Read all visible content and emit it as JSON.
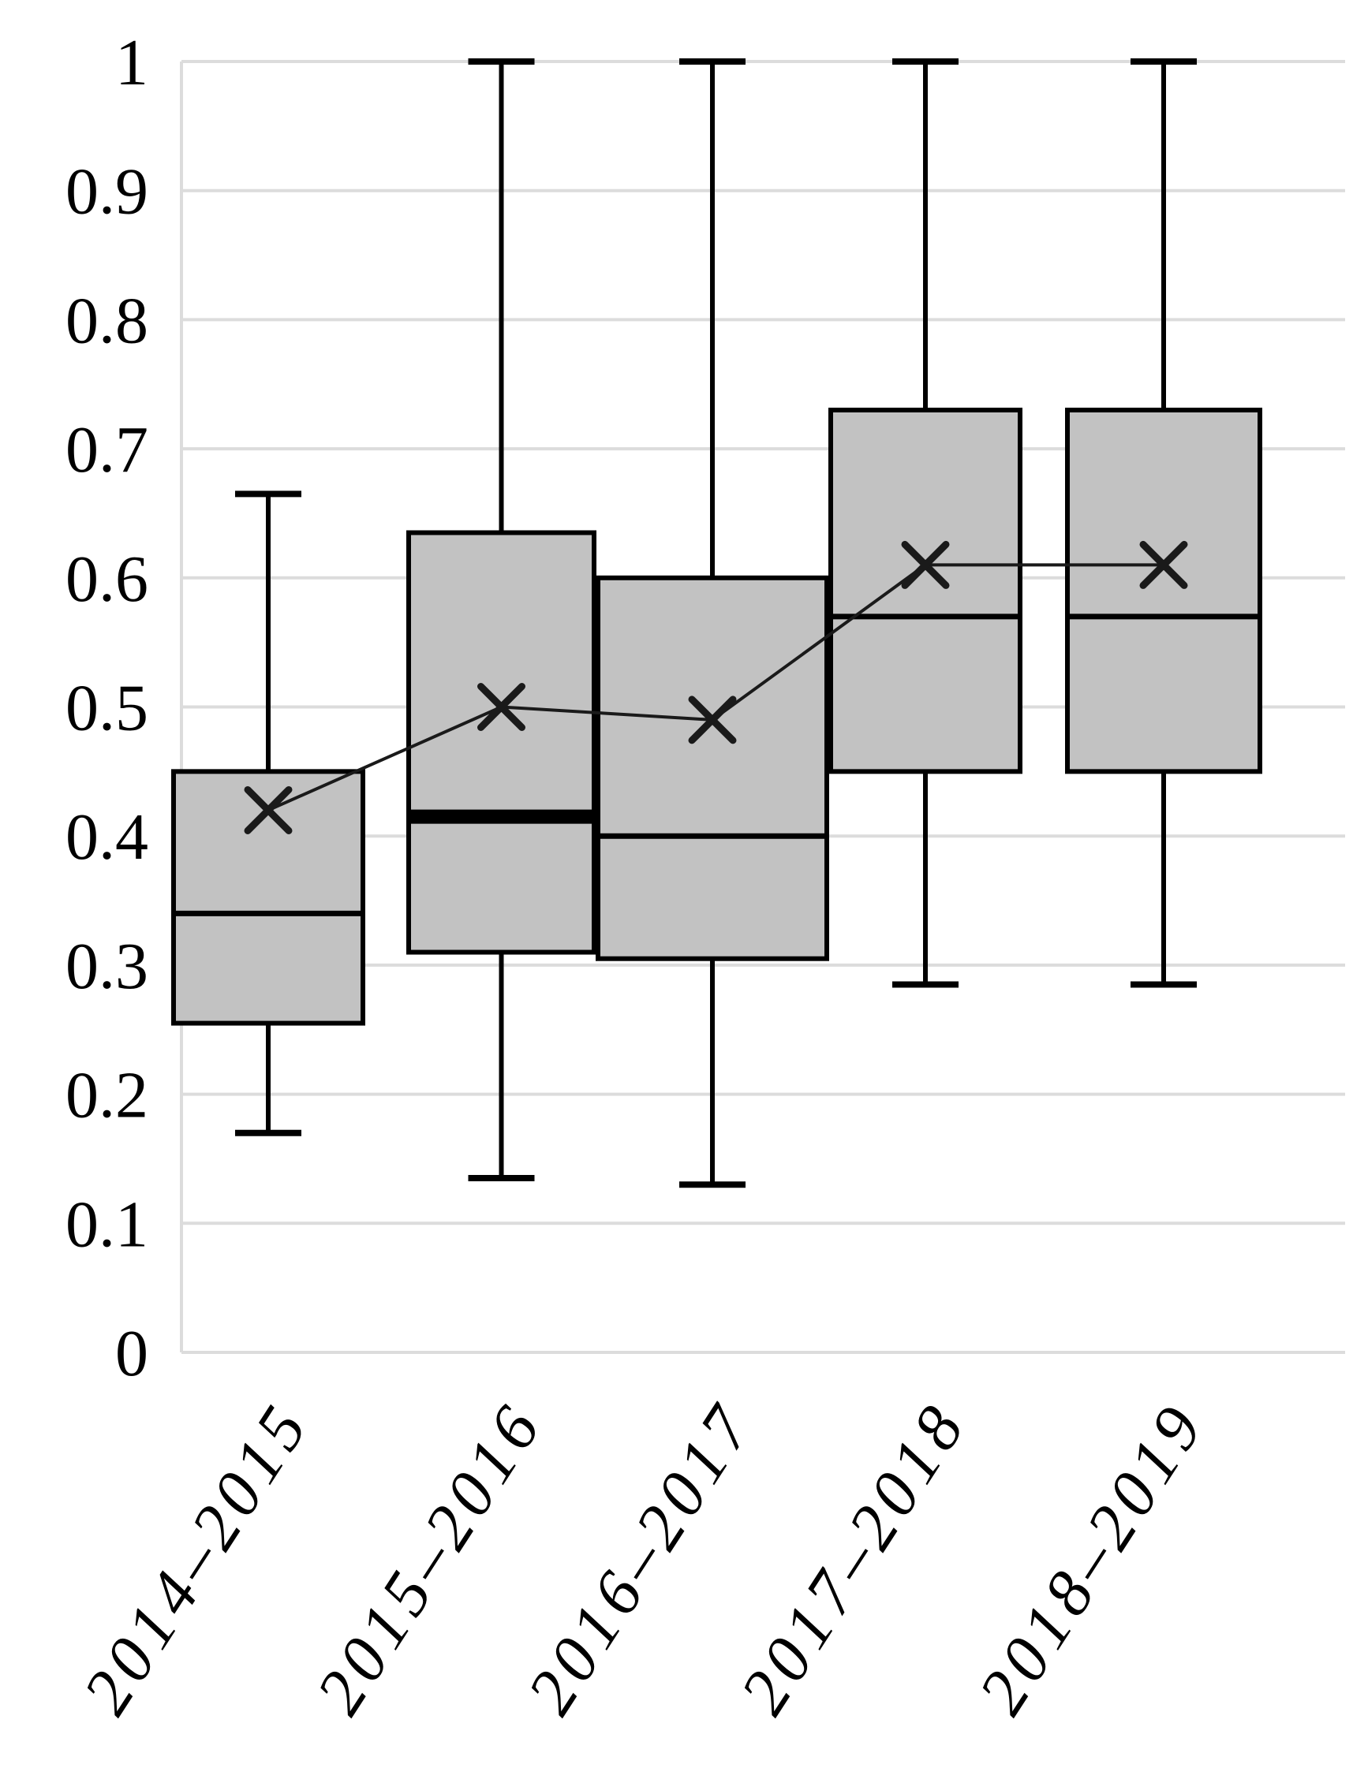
{
  "chart_data": {
    "type": "boxplot",
    "title": "",
    "xlabel": "",
    "ylabel": "",
    "categories": [
      "2014–2015",
      "2015–2016",
      "2016–2017",
      "2017–2018",
      "2018–2019"
    ],
    "y_axis": {
      "min": 0,
      "max": 1,
      "tick_step": 0.1,
      "ticks": [
        {
          "value": 0,
          "label": "0"
        },
        {
          "value": 0.1,
          "label": "0.1"
        },
        {
          "value": 0.2,
          "label": "0.2"
        },
        {
          "value": 0.3,
          "label": "0.3"
        },
        {
          "value": 0.4,
          "label": "0.4"
        },
        {
          "value": 0.5,
          "label": "0.5"
        },
        {
          "value": 0.6,
          "label": "0.6"
        },
        {
          "value": 0.7,
          "label": "0.7"
        },
        {
          "value": 0.8,
          "label": "0.8"
        },
        {
          "value": 0.9,
          "label": "0.9"
        },
        {
          "value": 1,
          "label": "1"
        }
      ]
    },
    "grid": true,
    "legend": false,
    "mean_line_connects_markers": true,
    "mean_marker": "x",
    "series": [
      {
        "category": "2014–2015",
        "whisker_low": 0.17,
        "q1": 0.255,
        "median": 0.34,
        "q3": 0.45,
        "whisker_high": 0.665,
        "mean": 0.42,
        "median_bold": false
      },
      {
        "category": "2015–2016",
        "whisker_low": 0.135,
        "q1": 0.31,
        "median": 0.415,
        "q3": 0.635,
        "whisker_high": 1.0,
        "mean": 0.5,
        "median_bold": true
      },
      {
        "category": "2016–2017",
        "whisker_low": 0.13,
        "q1": 0.305,
        "median": 0.4,
        "q3": 0.6,
        "whisker_high": 1.0,
        "mean": 0.49,
        "median_bold": false
      },
      {
        "category": "2017–2018",
        "whisker_low": 0.285,
        "q1": 0.45,
        "median": 0.57,
        "q3": 0.73,
        "whisker_high": 1.0,
        "mean": 0.61,
        "median_bold": false
      },
      {
        "category": "2018–2019",
        "whisker_low": 0.285,
        "q1": 0.45,
        "median": 0.57,
        "q3": 0.73,
        "whisker_high": 1.0,
        "mean": 0.61,
        "median_bold": false
      }
    ]
  },
  "colors": {
    "background": "#ffffff",
    "box_fill": "#c2c2c2",
    "box_border": "#000000",
    "median": "#000000",
    "whisker": "#000000",
    "mean_marker": "#1a1a1a",
    "mean_line": "#1a1a1a",
    "grid": "#dcdcdc",
    "axis_line": "#dcdcdc",
    "tick_text": "#000000"
  }
}
